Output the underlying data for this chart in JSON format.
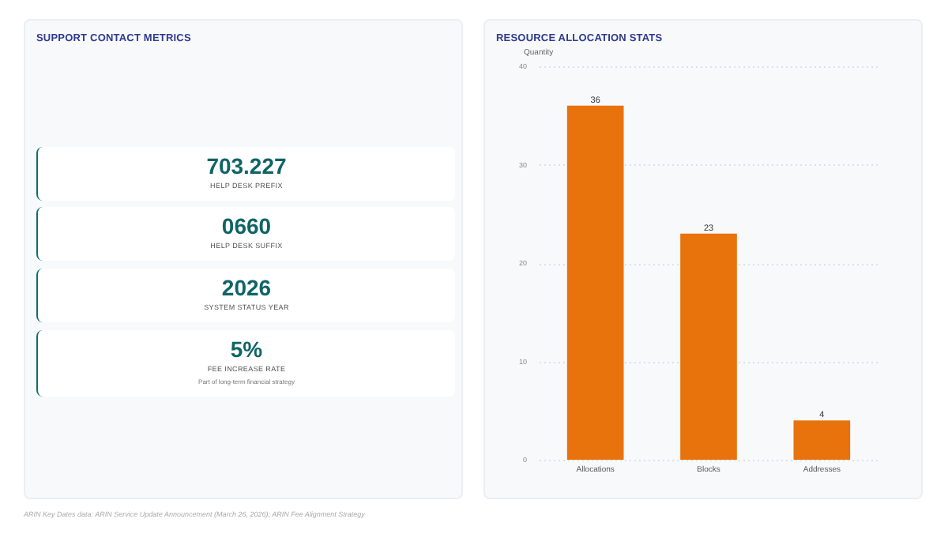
{
  "chart_data": [
    {
      "type": "other",
      "title": "SUPPORT CONTACT METRICS",
      "categories": [
        "HELP DESK PREFIX",
        "HELP DESK SUFFIX",
        "SYSTEM STATUS YEAR",
        "FEE INCREASE RATE"
      ],
      "value_labels": [
        "703.227",
        "0660",
        "2026",
        "5%"
      ],
      "annotations": [
        null,
        null,
        null,
        "Part of long-term financial strategy"
      ]
    },
    {
      "type": "bar",
      "title": "RESOURCE ALLOCATION STATS",
      "ylabel": "Quantity",
      "categories": [
        "Allocations",
        "Blocks",
        "Addresses"
      ],
      "values": [
        36,
        23,
        4
      ],
      "color": "#e8720c",
      "ylim": [
        0,
        40
      ],
      "yticks": [
        0,
        10,
        20,
        30,
        40
      ],
      "grid": "y",
      "data_labels": true,
      "annotations": [
        "ARIN Key Dates data: ARIN Service Update Announcement (March 26, 2026); ARIN Fee Alignment Strategy"
      ]
    }
  ]
}
